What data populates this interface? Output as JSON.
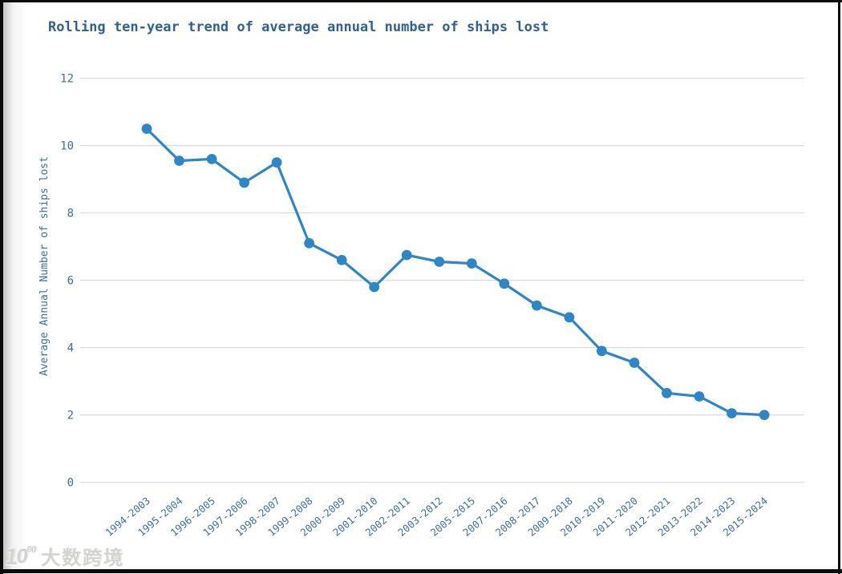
{
  "chart_data": {
    "type": "line",
    "title": "Rolling ten-year trend of average annual number of ships lost",
    "xlabel": "",
    "ylabel": "Average Annual Number of ships lost",
    "categories": [
      "1994-2003",
      "1995-2004",
      "1996-2005",
      "1997-2006",
      "1998-2007",
      "1999-2008",
      "2000-2009",
      "2001-2010",
      "2002-2011",
      "2003-2012",
      "2005-2015",
      "2007-2016",
      "2008-2017",
      "2009-2018",
      "2010-2019",
      "2011-2020",
      "2012-2021",
      "2013-2022",
      "2014-2023",
      "2015-2024"
    ],
    "values": [
      10.5,
      9.55,
      9.6,
      8.9,
      9.5,
      7.1,
      6.6,
      5.8,
      6.75,
      6.55,
      6.5,
      5.9,
      5.25,
      4.9,
      3.9,
      3.55,
      2.65,
      2.55,
      2.05,
      2.0
    ],
    "ylim": [
      0,
      12
    ],
    "yticks": [
      0,
      2,
      4,
      6,
      8,
      10,
      12
    ],
    "grid": "horizontal",
    "legend": "none",
    "colors": {
      "line": "#2e86c6",
      "marker": "#2e86c6",
      "grid": "#d9d9d9",
      "tick_text": "#3c6e9e",
      "title_text": "#30618f"
    }
  },
  "watermark": {
    "logo_one": "1",
    "logo_o": "O",
    "logo_sup": "00",
    "text": "大数跨境"
  }
}
